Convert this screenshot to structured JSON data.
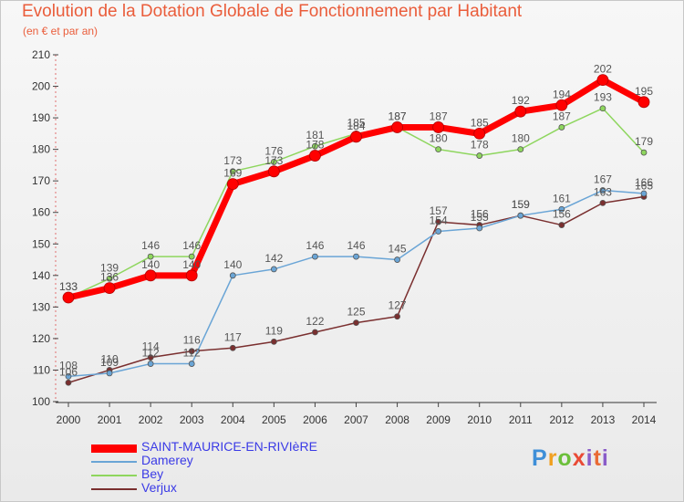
{
  "chart_data": {
    "type": "line",
    "title": "Evolution de la Dotation Globale de Fonctionnement par Habitant",
    "subtitle": "(en € et par an)",
    "xlabel": "",
    "ylabel": "",
    "x": [
      "2000",
      "2001",
      "2002",
      "2003",
      "2004",
      "2005",
      "2006",
      "2007",
      "2008",
      "2009",
      "2010",
      "2011",
      "2012",
      "2013",
      "2014"
    ],
    "ylim": [
      100,
      210
    ],
    "yticks": [
      "100",
      "110",
      "120",
      "130",
      "140",
      "150",
      "160",
      "170",
      "180",
      "190",
      "200",
      "210"
    ],
    "grid": false,
    "legend": "bottom-left",
    "series": [
      {
        "name": "SAINT-MAURICE-EN-RIVIèRE",
        "color": "#ff0000",
        "values": [
          133,
          136,
          140,
          140,
          169,
          173,
          178,
          184,
          187,
          187,
          185,
          192,
          194,
          202,
          195
        ]
      },
      {
        "name": "Damerey",
        "color": "#6aa5d6",
        "values": [
          108,
          109,
          112,
          112,
          140,
          142,
          146,
          146,
          145,
          154,
          155,
          159,
          161,
          167,
          166
        ]
      },
      {
        "name": "Bey",
        "color": "#8ed65e",
        "values": [
          133,
          139,
          146,
          146,
          173,
          176,
          181,
          185,
          187,
          180,
          178,
          180,
          187,
          193,
          179
        ]
      },
      {
        "name": "Verjux",
        "color": "#7a2f2f",
        "values": [
          106,
          110,
          114,
          116,
          117,
          119,
          122,
          125,
          127,
          157,
          156,
          159,
          156,
          163,
          165
        ]
      }
    ]
  },
  "logo": {
    "p": "P",
    "r": "r",
    "o": "o",
    "x": "x",
    "i": "i",
    "t": "t",
    "i2": "i"
  }
}
